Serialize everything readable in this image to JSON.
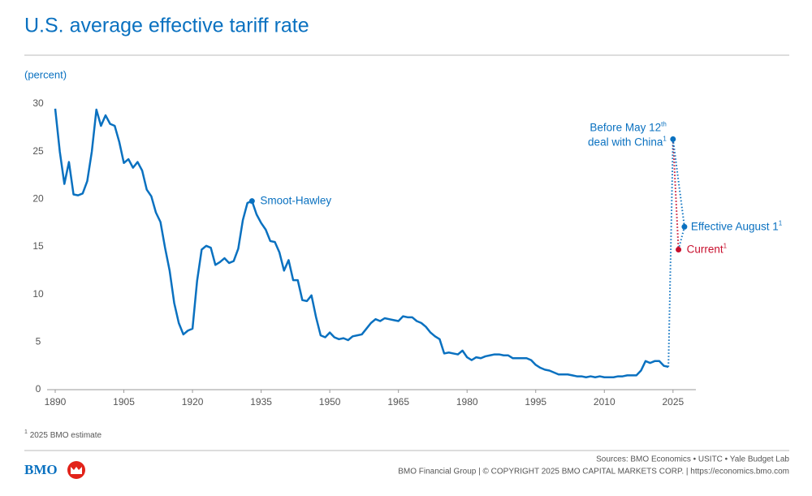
{
  "chart_data": {
    "type": "line",
    "title": "U.S. average effective tariff rate",
    "y_label": "(percent)",
    "x": [
      1890,
      1891,
      1892,
      1893,
      1894,
      1895,
      1896,
      1897,
      1898,
      1899,
      1900,
      1901,
      1902,
      1903,
      1904,
      1905,
      1906,
      1907,
      1908,
      1909,
      1910,
      1911,
      1912,
      1913,
      1914,
      1915,
      1916,
      1917,
      1918,
      1919,
      1920,
      1921,
      1922,
      1923,
      1924,
      1925,
      1926,
      1927,
      1928,
      1929,
      1930,
      1931,
      1932,
      1933,
      1934,
      1935,
      1936,
      1937,
      1938,
      1939,
      1940,
      1941,
      1942,
      1943,
      1944,
      1945,
      1946,
      1947,
      1948,
      1949,
      1950,
      1951,
      1952,
      1953,
      1954,
      1955,
      1956,
      1957,
      1958,
      1959,
      1960,
      1961,
      1962,
      1963,
      1964,
      1965,
      1966,
      1967,
      1968,
      1969,
      1970,
      1971,
      1972,
      1973,
      1974,
      1975,
      1976,
      1977,
      1978,
      1979,
      1980,
      1981,
      1982,
      1983,
      1984,
      1985,
      1986,
      1987,
      1988,
      1989,
      1990,
      1991,
      1992,
      1993,
      1994,
      1995,
      1996,
      1997,
      1998,
      1999,
      2000,
      2001,
      2002,
      2003,
      2004,
      2005,
      2006,
      2007,
      2008,
      2009,
      2010,
      2011,
      2012,
      2013,
      2014,
      2015,
      2016,
      2017,
      2018,
      2019,
      2020,
      2021,
      2022,
      2023,
      2024
    ],
    "series": [
      {
        "color": "#0a71c0",
        "values": [
          29.5,
          25,
          21.6,
          23.9,
          20.5,
          20.4,
          20.6,
          21.9,
          25.0,
          29.4,
          27.7,
          28.8,
          27.9,
          27.7,
          26.0,
          23.8,
          24.2,
          23.3,
          23.9,
          23.0,
          21.0,
          20.3,
          18.6,
          17.6,
          14.9,
          12.5,
          9.1,
          7.0,
          5.8,
          6.2,
          6.4,
          11.4,
          14.7,
          15.1,
          14.9,
          13.1,
          13.4,
          13.8,
          13.3,
          13.5,
          14.8,
          17.8,
          19.6,
          19.8,
          18.4,
          17.5,
          16.8,
          15.6,
          15.5,
          14.4,
          12.5,
          13.6,
          11.5,
          11.5,
          9.4,
          9.3,
          9.9,
          7.6,
          5.7,
          5.5,
          6.0,
          5.5,
          5.3,
          5.4,
          5.2,
          5.6,
          5.7,
          5.8,
          6.4,
          7.0,
          7.4,
          7.2,
          7.5,
          7.4,
          7.3,
          7.2,
          7.7,
          7.6,
          7.6,
          7.2,
          7.0,
          6.6,
          6.0,
          5.6,
          5.3,
          3.8,
          3.9,
          3.8,
          3.7,
          4.1,
          3.4,
          3.1,
          3.4,
          3.3,
          3.5,
          3.6,
          3.7,
          3.7,
          3.6,
          3.6,
          3.3,
          3.3,
          3.3,
          3.3,
          3.1,
          2.6,
          2.3,
          2.1,
          2.0,
          1.8,
          1.6,
          1.6,
          1.6,
          1.5,
          1.4,
          1.4,
          1.3,
          1.4,
          1.3,
          1.4,
          1.3,
          1.3,
          1.3,
          1.4,
          1.4,
          1.5,
          1.5,
          1.5,
          2.0,
          3.0,
          2.8,
          3.0,
          3.0,
          2.5,
          2.4
        ]
      }
    ],
    "annotations": [
      {
        "lines": [
          {
            "text": "Smoot-Hawley"
          }
        ],
        "x": 1933,
        "y": 19.8,
        "color": "#0a71c0"
      },
      {
        "lines": [
          {
            "text": "Before May 12",
            "sup": "th"
          },
          {
            "text": "deal with China",
            "sup": "1"
          }
        ],
        "x": 2025,
        "y": 26.3,
        "color": "#0a71c0"
      },
      {
        "lines": [
          {
            "text": "Current",
            "sup": "1"
          }
        ],
        "x": 2026.2,
        "y": 14.7,
        "color": "#c8102e"
      },
      {
        "lines": [
          {
            "text": "Effective August 1",
            "sup": "1"
          }
        ],
        "x": 2027.5,
        "y": 17.1,
        "color": "#0a71c0"
      }
    ],
    "xlim": [
      1890,
      2030
    ],
    "xticks": [
      1890,
      1905,
      1920,
      1935,
      1950,
      1965,
      1980,
      1995,
      2010,
      2025
    ],
    "ylim": [
      0,
      30
    ],
    "yticks": [
      0,
      5,
      10,
      15,
      20,
      25,
      30
    ],
    "footnote": {
      "sup": "1",
      "text": "2025 BMO estimate"
    },
    "sources": "Sources: BMO Economics • USITC • Yale Budget Lab",
    "copyright": "BMO Financial Group | © COPYRIGHT 2025 BMO CAPITAL MARKETS CORP. | https://economics.bmo.com",
    "logo": "BMO"
  }
}
